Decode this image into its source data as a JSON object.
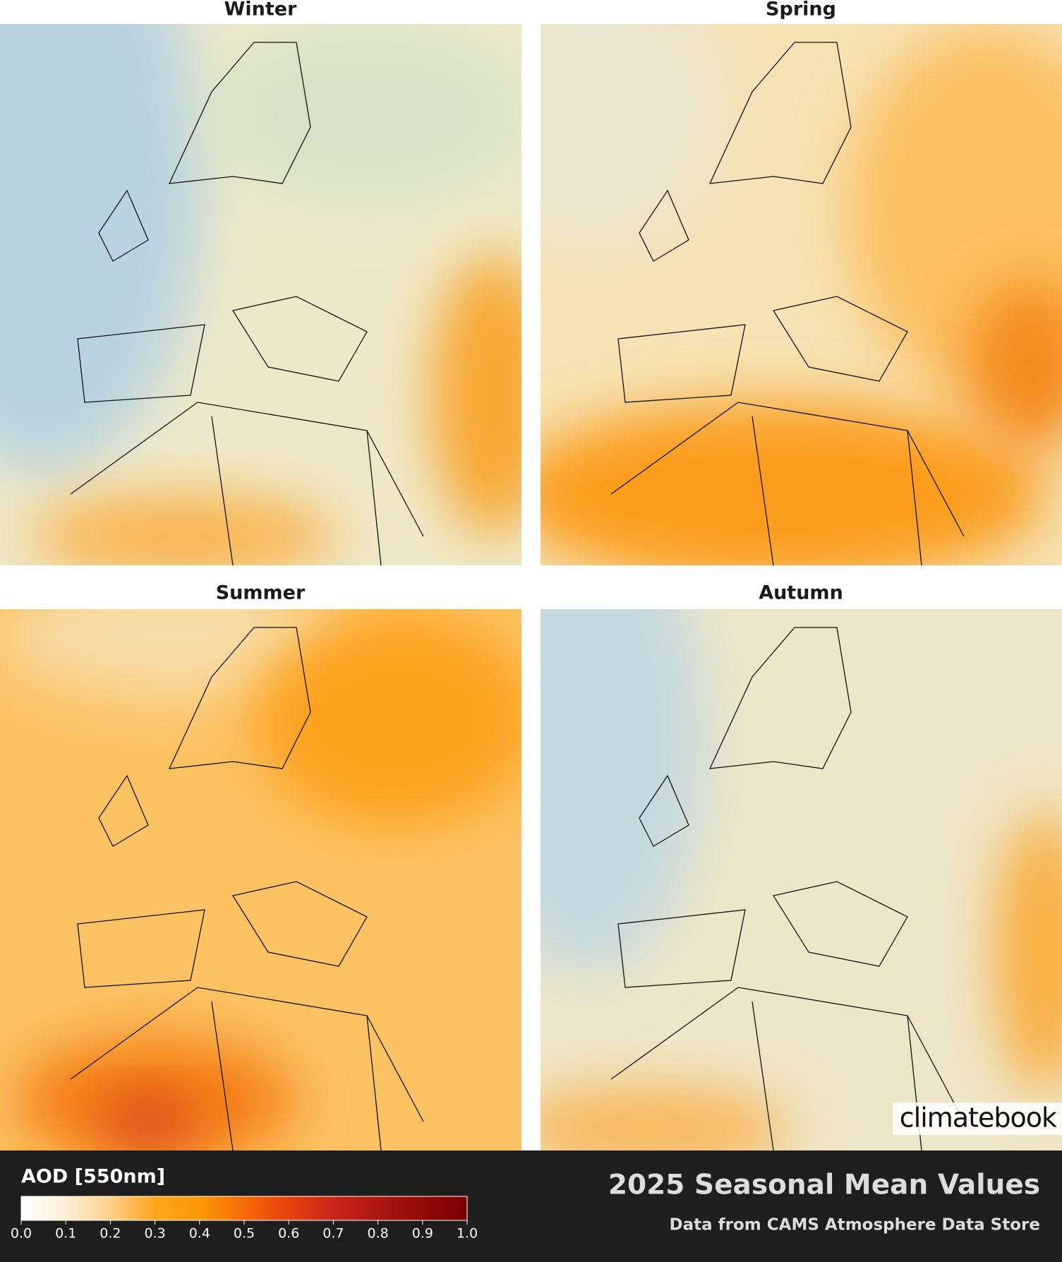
{
  "panels": [
    {
      "title": "Winter"
    },
    {
      "title": "Spring"
    },
    {
      "title": "Summer"
    },
    {
      "title": "Autumn"
    }
  ],
  "colorbar": {
    "label": "AOD [550nm]",
    "lim": [
      0,
      1
    ],
    "ticks": [
      {
        "value": 0,
        "label": "0.0"
      },
      {
        "value": 0.1,
        "label": "0.1"
      },
      {
        "value": 0.2,
        "label": "0.2"
      },
      {
        "value": 0.3,
        "label": "0.3"
      },
      {
        "value": 0.4,
        "label": "0.4"
      },
      {
        "value": 0.5,
        "label": "0.5"
      },
      {
        "value": 0.6,
        "label": "0.6"
      },
      {
        "value": 0.7,
        "label": "0.7"
      },
      {
        "value": 0.8,
        "label": "0.8"
      },
      {
        "value": 0.9,
        "label": "0.9"
      },
      {
        "value": 1,
        "label": "1.0"
      }
    ]
  },
  "title": "2025 Seasonal Mean Values",
  "subtitle": "Data from CAMS Atmosphere Data Store",
  "logo": "climatebook"
}
